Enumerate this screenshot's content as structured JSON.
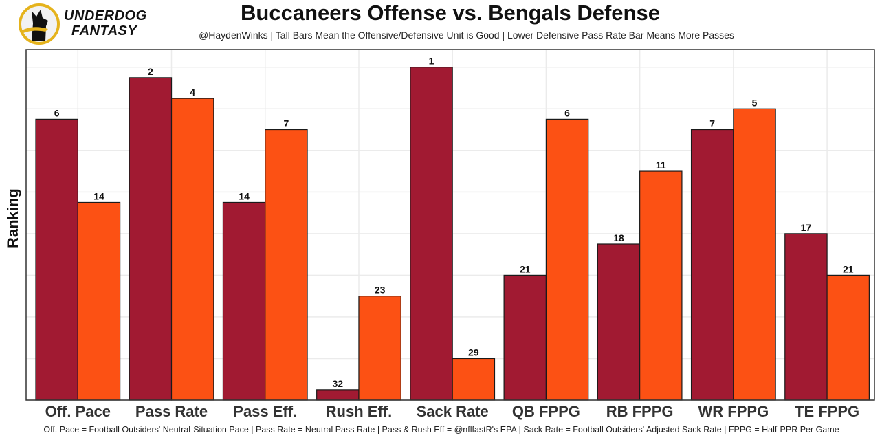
{
  "logo": {
    "line1": "UNDERDOG",
    "line2": "FANTASY",
    "ring_color": "#E5B31C",
    "icon": "dog-silhouette-icon"
  },
  "chart_data": {
    "type": "bar",
    "title": "Buccaneers Offense vs. Bengals Defense",
    "subtitle": "@HaydenWinks | Tall Bars Mean the Offensive/Defensive Unit is Good | Lower Defensive Pass Rate Bar Means More Passes",
    "caption": "Off. Pace = Football Outsiders' Neutral-Situation Pace | Pass Rate = Neutral Pass Rate | Pass & Rush Eff = @nflfastR's EPA | Sack Rate = Football Outsiders' Adjusted Sack Rate | FPPG = Half-PPR Per Game",
    "xlabel": "",
    "ylabel": "Ranking",
    "y_axis_note": "bar height = 33 - rank (rank 1 tallest); no y tick labels shown",
    "ylim": [
      0,
      33.7
    ],
    "grid": true,
    "legend": "none",
    "categories": [
      "Off. Pace",
      "Pass Rate",
      "Pass Eff.",
      "Rush Eff.",
      "Sack Rate",
      "QB FPPG",
      "RB FPPG",
      "WR FPPG",
      "TE FPPG"
    ],
    "series": [
      {
        "name": "Buccaneers Offense",
        "color": "#A11A32",
        "ranks": [
          6,
          2,
          14,
          32,
          1,
          21,
          18,
          7,
          17
        ]
      },
      {
        "name": "Bengals Defense",
        "color": "#FC5114",
        "ranks": [
          14,
          4,
          7,
          23,
          29,
          6,
          11,
          5,
          21
        ]
      }
    ]
  }
}
